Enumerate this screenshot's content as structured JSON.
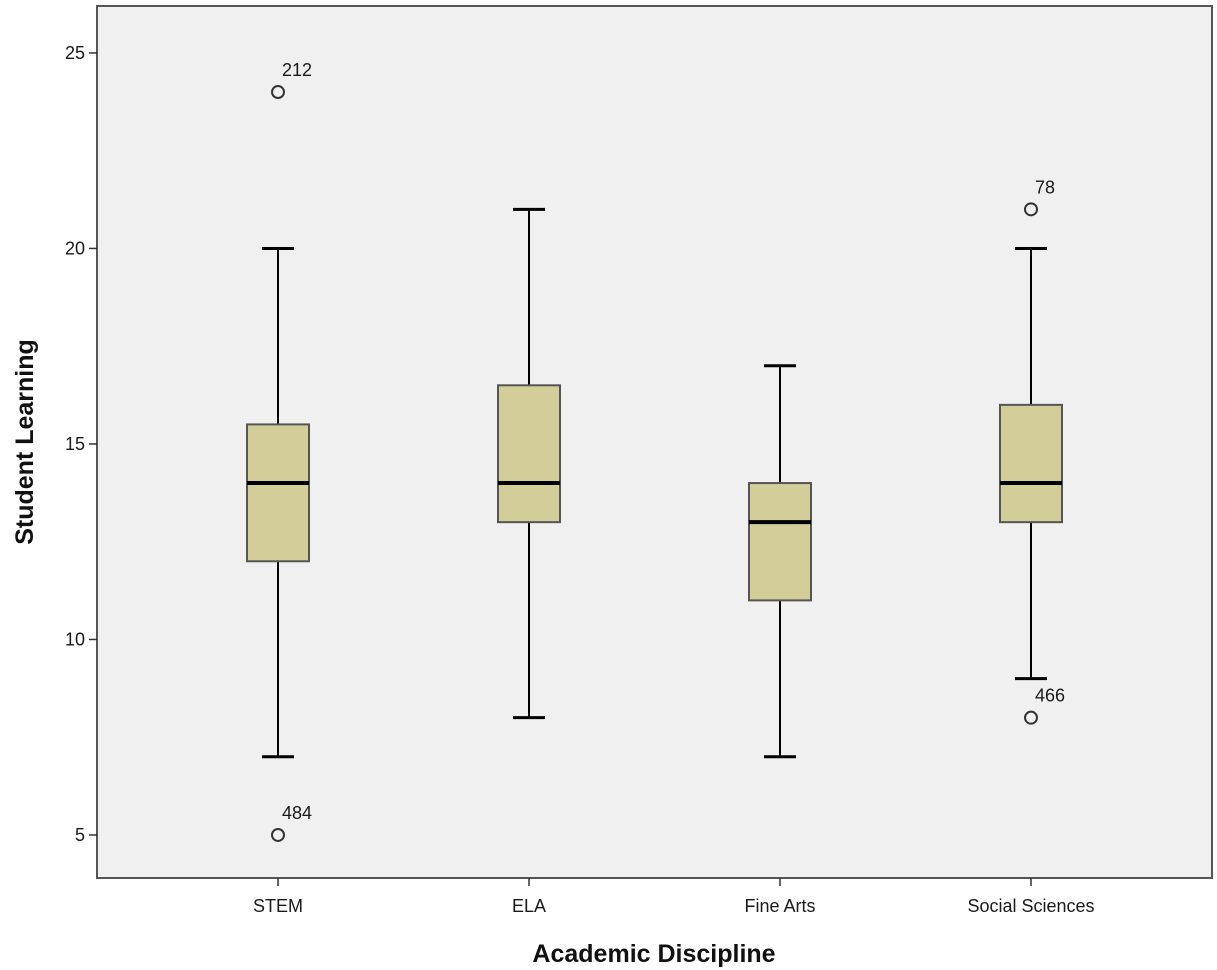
{
  "chart_data": {
    "type": "box",
    "xlabel": "Academic Discipline",
    "ylabel": "Student Learning",
    "ylim": [
      3.9,
      26.2
    ],
    "yticks": [
      5,
      10,
      15,
      20,
      25
    ],
    "grid": false,
    "legend": "none",
    "colors": {
      "plot_background": "#f0f0f0",
      "box_fill": "#d3ce99",
      "box_stroke": "#555555",
      "whisker": "#000000",
      "median": "#000000",
      "outlier_stroke": "#333333"
    },
    "categories": [
      "STEM",
      "ELA",
      "Fine Arts",
      "Social Sciences"
    ],
    "boxes": [
      {
        "category": "STEM",
        "whisker_low": 7,
        "q1": 12,
        "median": 14,
        "q3": 15.5,
        "whisker_high": 20,
        "outliers": [
          {
            "value": 24,
            "label": "212"
          },
          {
            "value": 5,
            "label": "484"
          }
        ]
      },
      {
        "category": "ELA",
        "whisker_low": 8,
        "q1": 13,
        "median": 14,
        "q3": 16.5,
        "whisker_high": 21,
        "outliers": []
      },
      {
        "category": "Fine Arts",
        "whisker_low": 7,
        "q1": 11,
        "median": 13,
        "q3": 14,
        "whisker_high": 17,
        "outliers": []
      },
      {
        "category": "Social Sciences",
        "whisker_low": 9,
        "q1": 13,
        "median": 14,
        "q3": 16,
        "whisker_high": 20,
        "outliers": [
          {
            "value": 21,
            "label": "78"
          },
          {
            "value": 8,
            "label": "466"
          }
        ]
      }
    ]
  }
}
